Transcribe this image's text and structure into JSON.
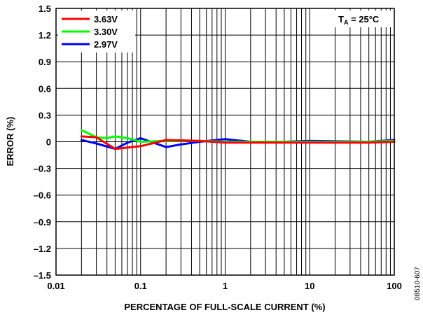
{
  "chart_data": {
    "type": "line",
    "title": "",
    "xlabel": "PERCENTAGE OF FULL-SCALE CURRENT (%)",
    "ylabel": "ERROR (%)",
    "xscale": "log",
    "xlim": [
      0.01,
      100
    ],
    "ylim": [
      -1.5,
      1.5
    ],
    "x_ticks": [
      "0.01",
      "0.1",
      "1",
      "10",
      "100"
    ],
    "y_ticks": [
      "1.5",
      "1.2",
      "0.9",
      "0.6",
      "0.3",
      "0",
      "–0.3",
      "–0.6",
      "–0.9",
      "–1.2",
      "–1.5"
    ],
    "grid": true,
    "legend_position": "top-left",
    "annotation": {
      "main": "T",
      "sub": "A",
      "rest": " = 25°C"
    },
    "figure_code": "08510-607",
    "series": [
      {
        "name": "3.63V",
        "color": "#ff0000",
        "x": [
          0.02,
          0.03,
          0.05,
          0.1,
          0.2,
          0.5,
          1,
          2,
          5,
          10,
          50,
          100
        ],
        "y": [
          0.06,
          0.05,
          -0.08,
          -0.05,
          0.02,
          0.01,
          -0.01,
          -0.01,
          -0.01,
          -0.01,
          -0.01,
          0.0
        ]
      },
      {
        "name": "3.30V",
        "color": "#00ff00",
        "x": [
          0.02,
          0.03,
          0.04,
          0.05,
          0.07,
          0.1,
          0.2,
          0.5,
          1,
          2,
          5,
          10,
          50,
          100
        ],
        "y": [
          0.13,
          0.05,
          0.04,
          0.06,
          0.04,
          0.0,
          0.01,
          0.01,
          0.0,
          0.0,
          0.0,
          0.0,
          0.0,
          0.01
        ]
      },
      {
        "name": "2.97V",
        "color": "#0000ff",
        "x": [
          0.02,
          0.03,
          0.05,
          0.07,
          0.1,
          0.2,
          0.3,
          0.5,
          1,
          2,
          5,
          10,
          50,
          100
        ],
        "y": [
          0.02,
          -0.02,
          -0.08,
          -0.01,
          0.04,
          -0.06,
          -0.03,
          0.0,
          0.03,
          0.0,
          0.0,
          0.01,
          0.0,
          0.02
        ]
      }
    ]
  }
}
